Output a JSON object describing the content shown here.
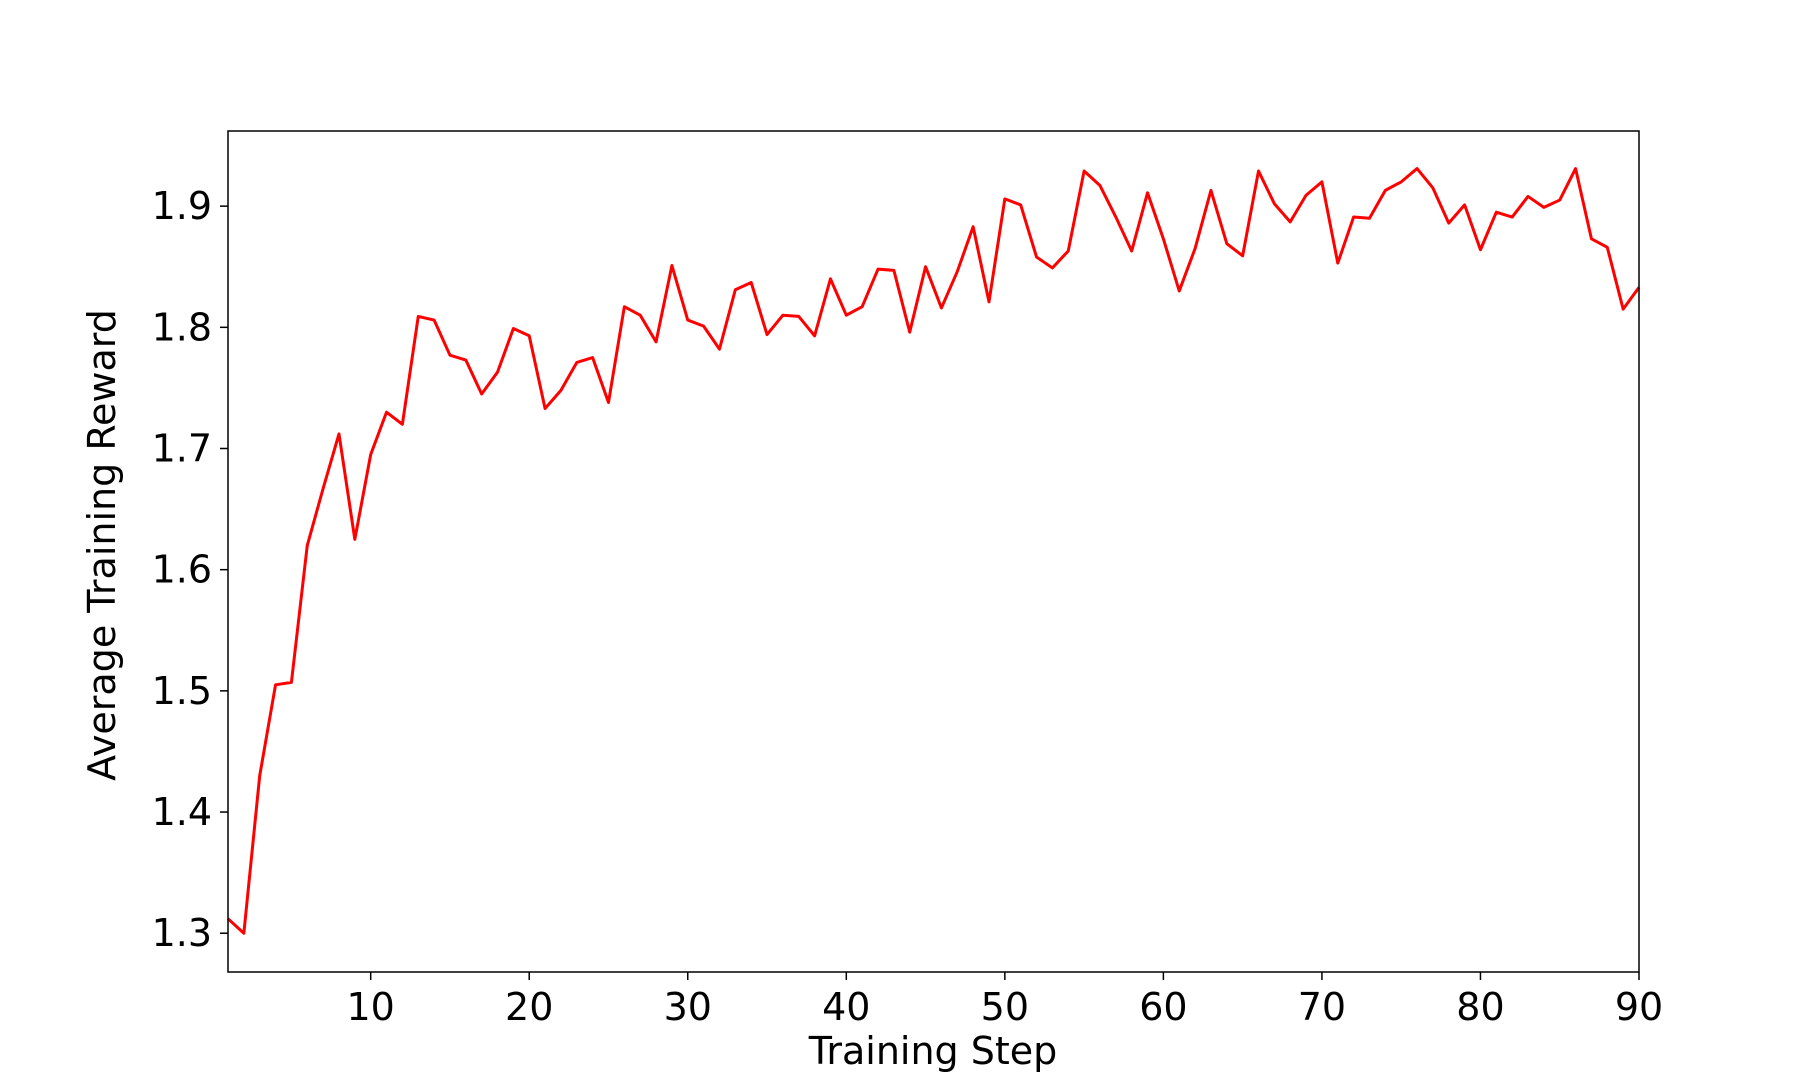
{
  "chart_data": {
    "type": "line",
    "x_label": "Training Step",
    "y_label": "Average Training Reward",
    "x": [
      1,
      2,
      3,
      4,
      5,
      6,
      7,
      8,
      9,
      10,
      11,
      12,
      13,
      14,
      15,
      16,
      17,
      18,
      19,
      20,
      21,
      22,
      23,
      24,
      25,
      26,
      27,
      28,
      29,
      30,
      31,
      32,
      33,
      34,
      35,
      36,
      37,
      38,
      39,
      40,
      41,
      42,
      43,
      44,
      45,
      46,
      47,
      48,
      49,
      50,
      51,
      52,
      53,
      54,
      55,
      56,
      57,
      58,
      59,
      60,
      61,
      62,
      63,
      64,
      65,
      66,
      67,
      68,
      69,
      70,
      71,
      72,
      73,
      74,
      75,
      76,
      77,
      78,
      79,
      80,
      81,
      82,
      83,
      84,
      85,
      86,
      87,
      88,
      89,
      90
    ],
    "series": [
      {
        "color": "#ff0000",
        "values": [
          1.312,
          1.3,
          1.43,
          1.505,
          1.507,
          1.62,
          1.667,
          1.712,
          1.625,
          1.695,
          1.73,
          1.72,
          1.809,
          1.806,
          1.777,
          1.773,
          1.745,
          1.763,
          1.799,
          1.793,
          1.733,
          1.748,
          1.771,
          1.775,
          1.738,
          1.817,
          1.81,
          1.788,
          1.851,
          1.806,
          1.801,
          1.782,
          1.831,
          1.837,
          1.794,
          1.81,
          1.809,
          1.793,
          1.84,
          1.81,
          1.817,
          1.848,
          1.847,
          1.796,
          1.85,
          1.816,
          1.846,
          1.883,
          1.821,
          1.906,
          1.901,
          1.858,
          1.849,
          1.863,
          1.929,
          1.917,
          1.891,
          1.863,
          1.911,
          1.873,
          1.83,
          1.865,
          1.913,
          1.869,
          1.859,
          1.929,
          1.902,
          1.887,
          1.909,
          1.92,
          1.853,
          1.891,
          1.89,
          1.913,
          1.92,
          1.931,
          1.915,
          1.886,
          1.901,
          1.864,
          1.895,
          1.891,
          1.908,
          1.899,
          1.905,
          1.931,
          1.873,
          1.866,
          1.815,
          1.833
        ]
      }
    ],
    "xlim": [
      1,
      90
    ],
    "xticks": [
      10,
      20,
      30,
      40,
      50,
      60,
      70,
      80,
      90
    ],
    "ylim": [
      1.268,
      1.962
    ],
    "yticks": [
      1.3,
      1.4,
      1.5,
      1.6,
      1.7,
      1.8,
      1.9
    ]
  }
}
